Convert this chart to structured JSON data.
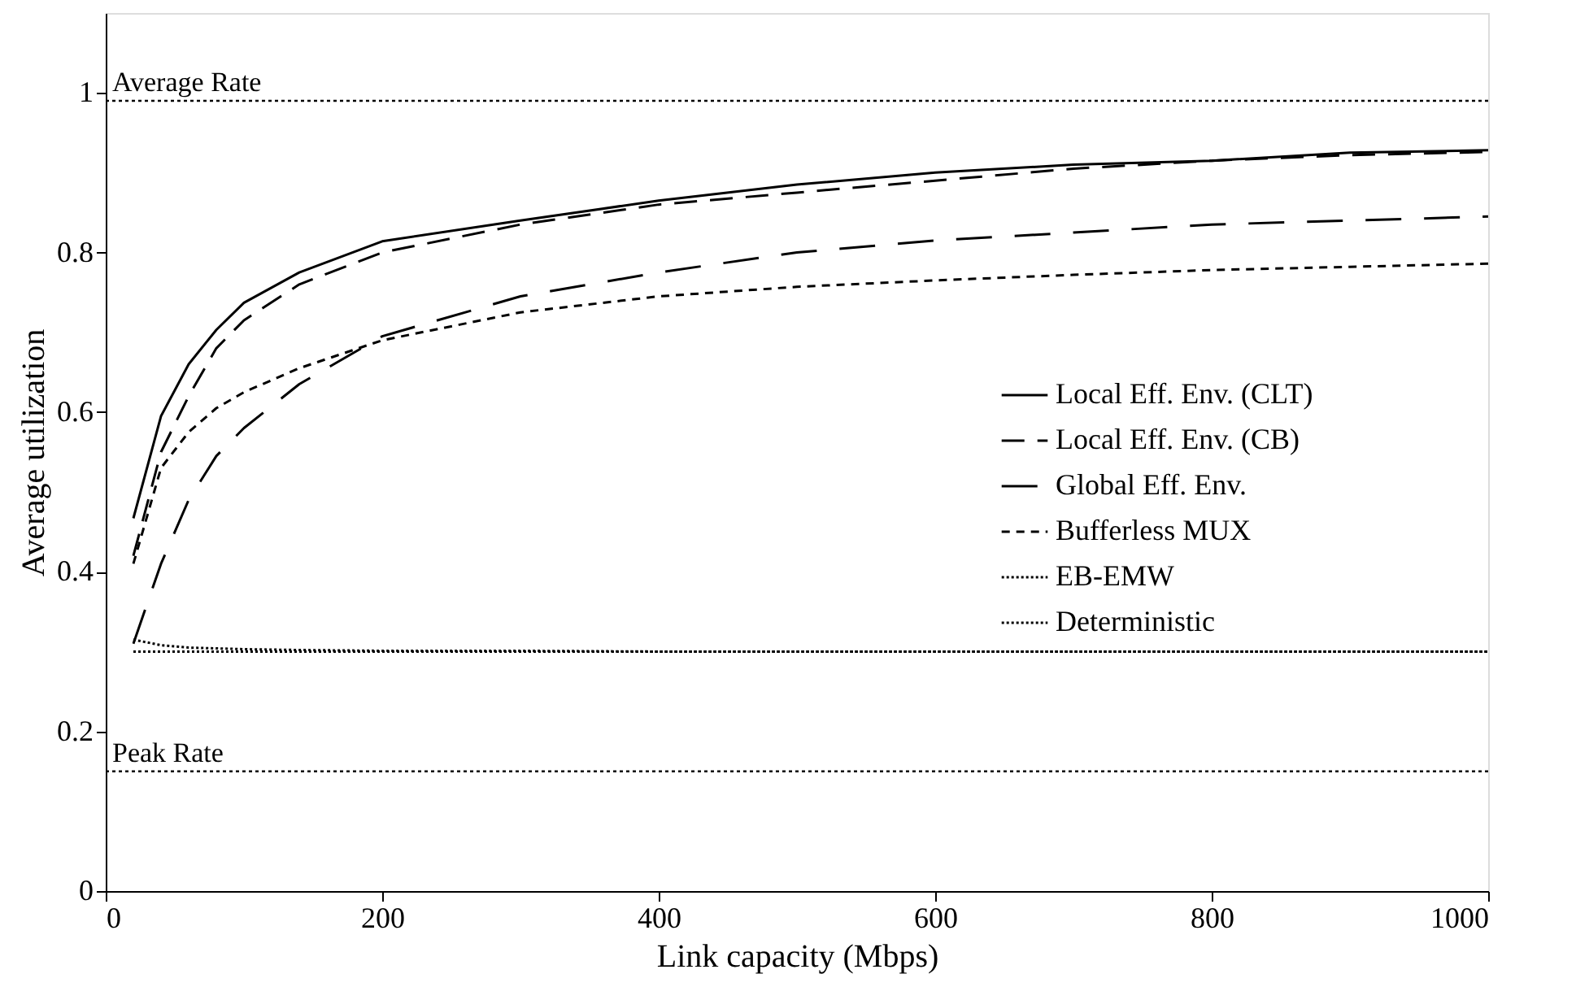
{
  "chart_data": {
    "type": "line",
    "xlabel": "Link capacity (Mbps)",
    "ylabel": "Average utilization",
    "xlim": [
      0,
      1000
    ],
    "ylim": [
      0,
      1.1
    ],
    "xticks": [
      0,
      200,
      400,
      600,
      800,
      {
        "value": 1000,
        "label": "1000"
      }
    ],
    "yticks": [
      {
        "value": 0,
        "label": "0"
      },
      0.2,
      0.4,
      0.6,
      0.8,
      {
        "value": 1,
        "label": "1"
      }
    ],
    "grid": false,
    "legend": "right",
    "marker": "none",
    "x": [
      20,
      40,
      60,
      80,
      100,
      140,
      200,
      300,
      400,
      500,
      600,
      700,
      800,
      900,
      1000
    ],
    "series": [
      {
        "name": "Local Eff. Env. (CLT)",
        "color": "#000000",
        "line_style": "solid",
        "values": [
          0.467,
          0.595,
          0.66,
          0.703,
          0.737,
          0.775,
          0.814,
          0.84,
          0.865,
          0.885,
          0.9,
          0.91,
          0.915,
          0.925,
          0.928
        ]
      },
      {
        "name": "Local Eff. Env. (CB)",
        "color": "#000000",
        "line_style": "dashed",
        "values": [
          0.42,
          0.55,
          0.62,
          0.68,
          0.715,
          0.76,
          0.8,
          0.835,
          0.86,
          0.875,
          0.89,
          0.905,
          0.915,
          0.922,
          0.926
        ]
      },
      {
        "name": "Global Eff. Env.",
        "color": "#000000",
        "line_style": "dashed",
        "values": [
          0.31,
          0.41,
          0.49,
          0.545,
          0.58,
          0.635,
          0.695,
          0.745,
          0.775,
          0.8,
          0.815,
          0.825,
          0.835,
          0.84,
          0.845
        ]
      },
      {
        "name": "Bufferless MUX",
        "color": "#000000",
        "line_style": "dashed",
        "values": [
          0.41,
          0.53,
          0.575,
          0.605,
          0.625,
          0.655,
          0.69,
          0.725,
          0.745,
          0.757,
          0.765,
          0.772,
          0.778,
          0.782,
          0.786
        ]
      },
      {
        "name": "EB-EMW",
        "color": "#000000",
        "line_style": "dotted",
        "values": [
          0.315,
          0.308,
          0.305,
          0.304,
          0.303,
          0.302,
          0.301,
          0.301,
          0.3,
          0.3,
          0.3,
          0.3,
          0.3,
          0.3,
          0.3
        ]
      },
      {
        "name": "Deterministic",
        "color": "#000000",
        "line_style": "dotted",
        "values": [
          0.3,
          0.3,
          0.3,
          0.3,
          0.3,
          0.3,
          0.3,
          0.3,
          0.3,
          0.3,
          0.3,
          0.3,
          0.3,
          0.3,
          0.3
        ]
      }
    ],
    "ref_lines": [
      {
        "axis": "y",
        "value": 0.99,
        "label": "Average Rate",
        "line_style": "dotted",
        "color": "#000000"
      },
      {
        "axis": "y",
        "value": 0.15,
        "label": "Peak Rate",
        "line_style": "dotted",
        "color": "#000000"
      }
    ]
  }
}
